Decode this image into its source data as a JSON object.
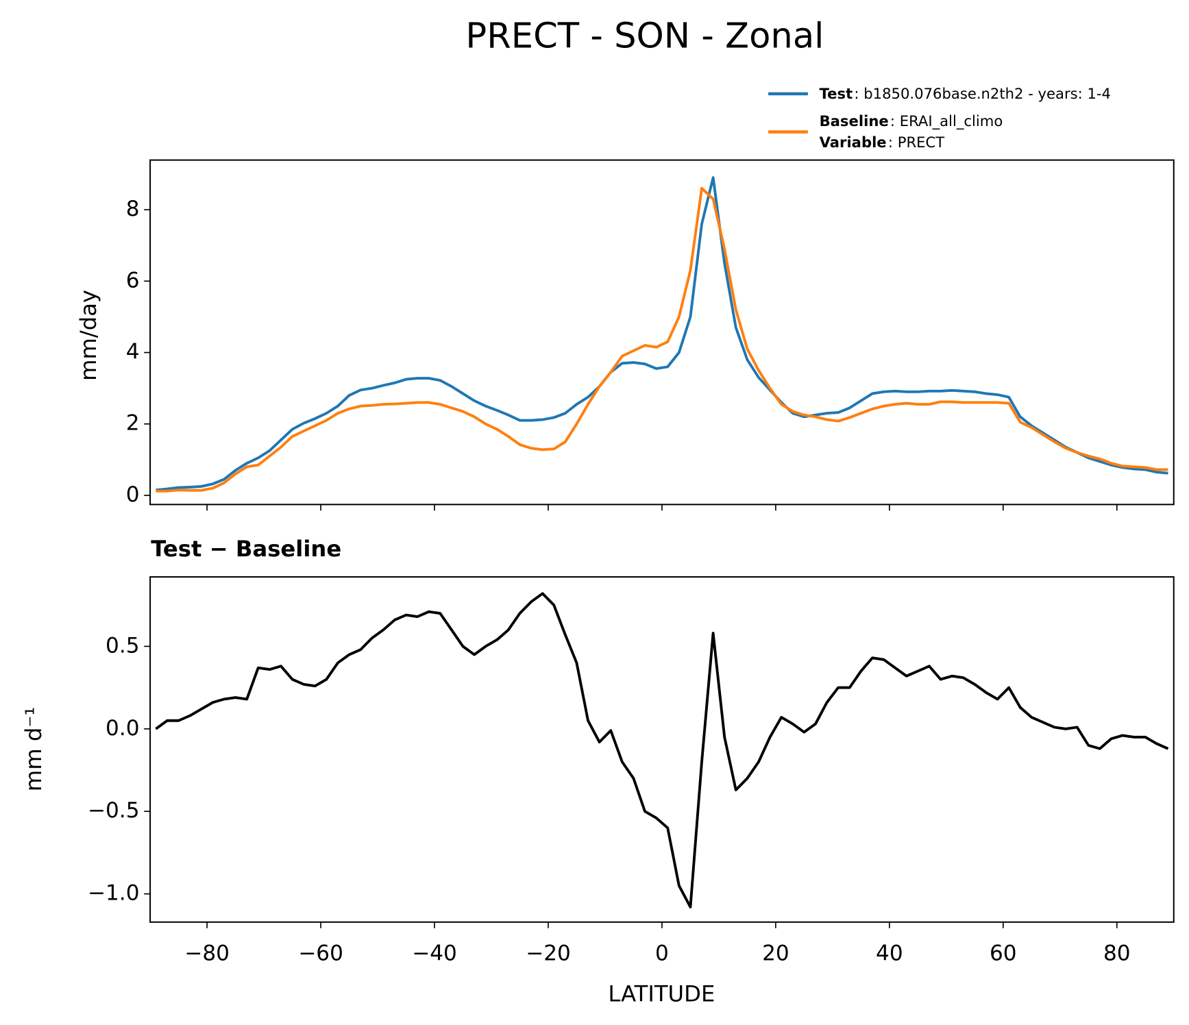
{
  "chart_data": [
    {
      "type": "line",
      "title": "PRECT - SON - Zonal",
      "ylabel": "mm/day",
      "x": [
        -89,
        -87,
        -85,
        -83,
        -81,
        -79,
        -77,
        -75,
        -73,
        -71,
        -69,
        -67,
        -65,
        -63,
        -61,
        -59,
        -57,
        -55,
        -53,
        -51,
        -49,
        -47,
        -45,
        -43,
        -41,
        -39,
        -37,
        -35,
        -33,
        -31,
        -29,
        -27,
        -25,
        -23,
        -21,
        -19,
        -17,
        -15,
        -13,
        -11,
        -9,
        -7,
        -5,
        -3,
        -1,
        1,
        3,
        5,
        7,
        9,
        11,
        13,
        15,
        17,
        19,
        21,
        23,
        25,
        27,
        29,
        31,
        33,
        35,
        37,
        39,
        41,
        43,
        45,
        47,
        49,
        51,
        53,
        55,
        57,
        59,
        61,
        63,
        65,
        67,
        69,
        71,
        73,
        75,
        77,
        79,
        81,
        83,
        85,
        87,
        89
      ],
      "series": [
        {
          "name": "Test",
          "case": ": b1850.076base.n2th2 - years: 1-4",
          "color": "#1f77b4",
          "values": [
            0.15,
            0.18,
            0.22,
            0.23,
            0.25,
            0.32,
            0.45,
            0.7,
            0.9,
            1.05,
            1.25,
            1.55,
            1.85,
            2.02,
            2.15,
            2.3,
            2.5,
            2.8,
            2.95,
            3.0,
            3.08,
            3.15,
            3.25,
            3.28,
            3.28,
            3.22,
            3.05,
            2.85,
            2.65,
            2.5,
            2.38,
            2.25,
            2.1,
            2.1,
            2.12,
            2.18,
            2.3,
            2.55,
            2.75,
            3.05,
            3.45,
            3.7,
            3.72,
            3.68,
            3.55,
            3.6,
            4.0,
            5.0,
            7.6,
            8.9,
            6.5,
            4.7,
            3.8,
            3.3,
            2.95,
            2.6,
            2.3,
            2.2,
            2.25,
            2.3,
            2.32,
            2.45,
            2.65,
            2.85,
            2.9,
            2.92,
            2.9,
            2.9,
            2.92,
            2.92,
            2.94,
            2.92,
            2.9,
            2.85,
            2.82,
            2.75,
            2.2,
            1.95,
            1.75,
            1.55,
            1.35,
            1.2,
            1.05,
            0.95,
            0.85,
            0.78,
            0.74,
            0.72,
            0.65,
            0.62
          ]
        },
        {
          "name": "Baseline",
          "case": ": ERAI_all_climo",
          "color": "#ff7f0e",
          "values": [
            0.12,
            0.12,
            0.15,
            0.14,
            0.14,
            0.2,
            0.35,
            0.6,
            0.8,
            0.85,
            1.1,
            1.35,
            1.65,
            1.8,
            1.95,
            2.1,
            2.3,
            2.42,
            2.5,
            2.52,
            2.55,
            2.56,
            2.58,
            2.6,
            2.6,
            2.55,
            2.45,
            2.35,
            2.2,
            2.0,
            1.85,
            1.65,
            1.42,
            1.32,
            1.28,
            1.3,
            1.5,
            2.0,
            2.55,
            3.05,
            3.45,
            3.9,
            4.05,
            4.2,
            4.15,
            4.3,
            5.0,
            6.3,
            8.6,
            8.3,
            6.9,
            5.2,
            4.1,
            3.5,
            3.0,
            2.55,
            2.35,
            2.25,
            2.2,
            2.12,
            2.08,
            2.18,
            2.3,
            2.42,
            2.5,
            2.55,
            2.58,
            2.55,
            2.55,
            2.62,
            2.62,
            2.6,
            2.6,
            2.6,
            2.6,
            2.58,
            2.05,
            1.9,
            1.7,
            1.5,
            1.32,
            1.2,
            1.1,
            1.02,
            0.9,
            0.82,
            0.8,
            0.78,
            0.72,
            0.72
          ]
        }
      ],
      "legend_extra": {
        "name": "Variable",
        "case": ": PRECT"
      },
      "xlim": [
        -90,
        90
      ],
      "ylim": [
        -0.256,
        9.39
      ],
      "yticks": [
        0,
        2,
        4,
        6,
        8
      ]
    },
    {
      "type": "line",
      "title": "Test − Baseline",
      "ylabel": "mm d⁻¹",
      "xlabel": "LATITUDE",
      "x": [
        -89,
        -87,
        -85,
        -83,
        -81,
        -79,
        -77,
        -75,
        -73,
        -71,
        -69,
        -67,
        -65,
        -63,
        -61,
        -59,
        -57,
        -55,
        -53,
        -51,
        -49,
        -47,
        -45,
        -43,
        -41,
        -39,
        -37,
        -35,
        -33,
        -31,
        -29,
        -27,
        -25,
        -23,
        -21,
        -19,
        -17,
        -15,
        -13,
        -11,
        -9,
        -7,
        -5,
        -3,
        -1,
        1,
        3,
        5,
        7,
        9,
        11,
        13,
        15,
        17,
        19,
        21,
        23,
        25,
        27,
        29,
        31,
        33,
        35,
        37,
        39,
        41,
        43,
        45,
        47,
        49,
        51,
        53,
        55,
        57,
        59,
        61,
        63,
        65,
        67,
        69,
        71,
        73,
        75,
        77,
        79,
        81,
        83,
        85,
        87,
        89
      ],
      "series": [
        {
          "color": "#000000",
          "values": [
            0.0,
            0.05,
            0.05,
            0.08,
            0.12,
            0.16,
            0.18,
            0.19,
            0.18,
            0.37,
            0.36,
            0.38,
            0.3,
            0.27,
            0.26,
            0.3,
            0.4,
            0.45,
            0.48,
            0.55,
            0.6,
            0.66,
            0.69,
            0.68,
            0.71,
            0.7,
            0.6,
            0.5,
            0.45,
            0.5,
            0.54,
            0.6,
            0.7,
            0.77,
            0.82,
            0.75,
            0.57,
            0.4,
            0.05,
            -0.08,
            -0.01,
            -0.2,
            -0.3,
            -0.5,
            -0.54,
            -0.6,
            -0.95,
            -1.08,
            -0.2,
            0.58,
            -0.05,
            -0.37,
            -0.3,
            -0.2,
            -0.05,
            0.07,
            0.03,
            -0.02,
            0.03,
            0.16,
            0.25,
            0.25,
            0.35,
            0.43,
            0.42,
            0.37,
            0.32,
            0.35,
            0.38,
            0.3,
            0.32,
            0.31,
            0.27,
            0.22,
            0.18,
            0.25,
            0.13,
            0.07,
            0.04,
            0.01,
            0.0,
            0.01,
            -0.1,
            -0.12,
            -0.06,
            -0.04,
            -0.05,
            -0.05,
            -0.09,
            -0.12
          ]
        }
      ],
      "xlim": [
        -90,
        90
      ],
      "ylim": [
        -1.171,
        0.921
      ],
      "yticks": [
        {
          "value": -1.0,
          "label": "−1.0"
        },
        {
          "value": -0.5,
          "label": "−0.5"
        },
        {
          "value": 0,
          "label": "0.0"
        },
        0.5
      ],
      "xticks": [
        {
          "value": -80,
          "label": "−80"
        },
        {
          "value": -60,
          "label": "−60"
        },
        {
          "value": -40,
          "label": "−40"
        },
        {
          "value": -20,
          "label": "−20"
        },
        0,
        20,
        40,
        60,
        80
      ]
    }
  ]
}
